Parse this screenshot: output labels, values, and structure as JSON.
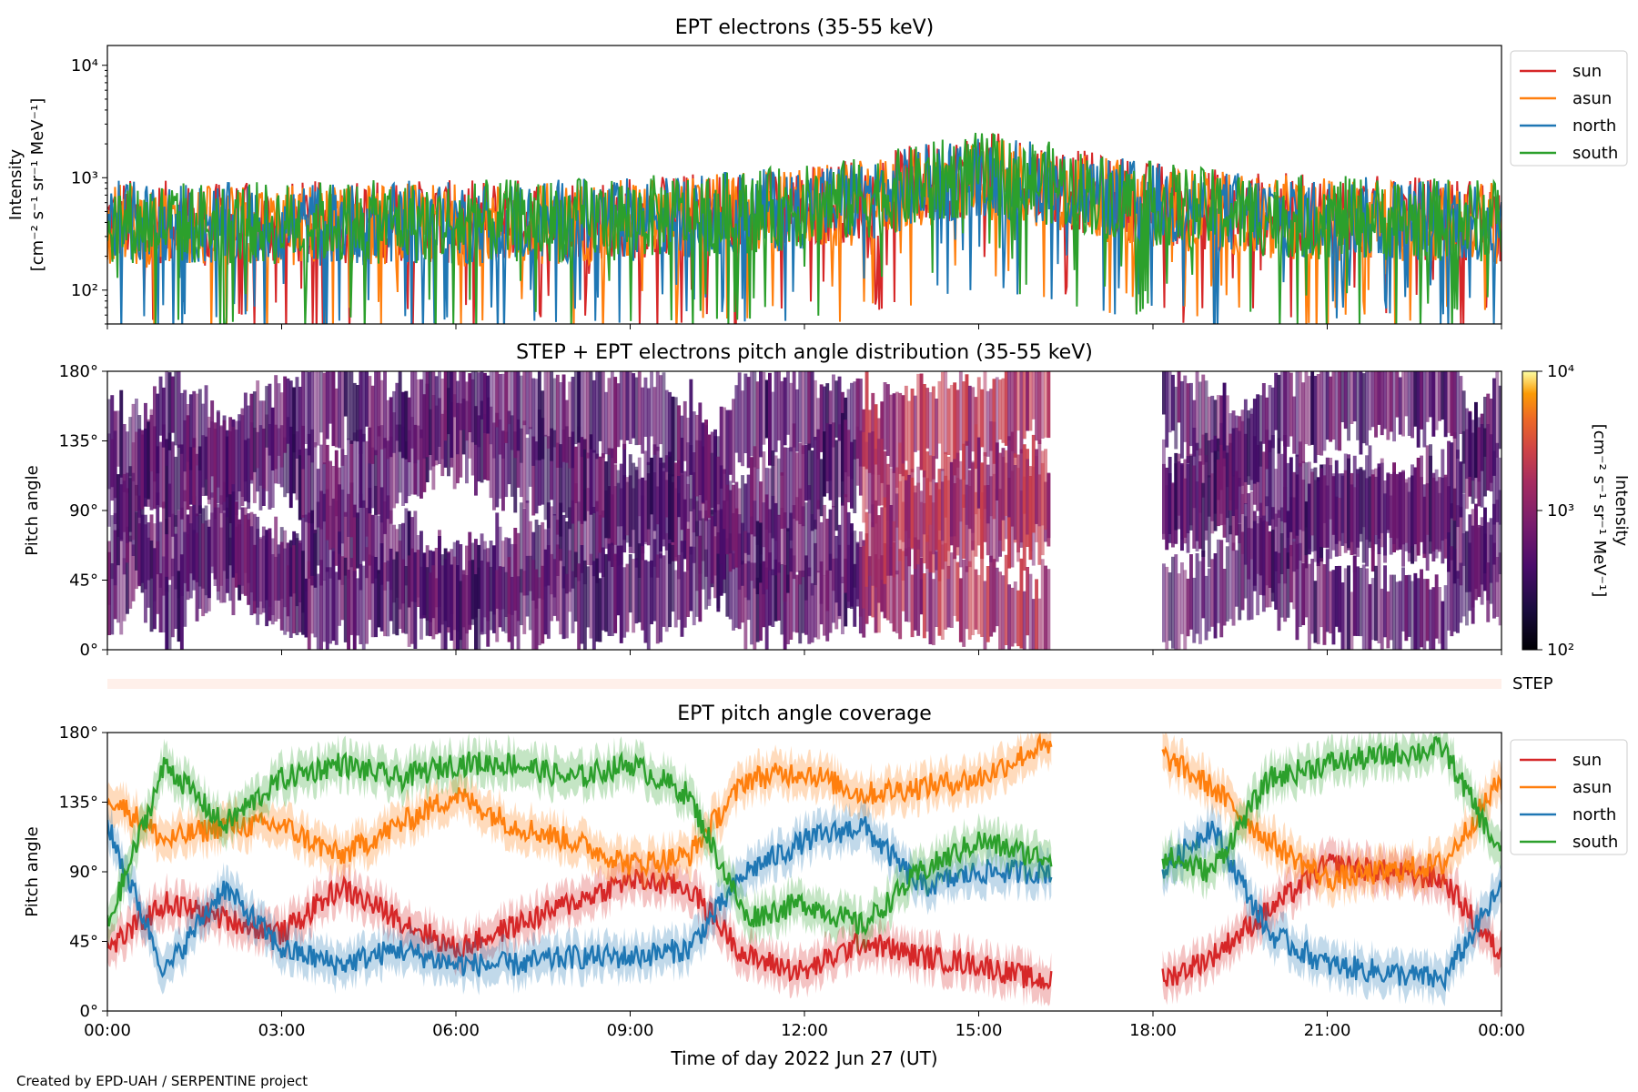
{
  "footer": "Created by EPD-UAH / SERPENTINE project",
  "xlabel": "Time of day 2022 Jun 27 (UT)",
  "x_ticks": [
    "00:00",
    "03:00",
    "06:00",
    "09:00",
    "12:00",
    "15:00",
    "18:00",
    "21:00",
    "00:00"
  ],
  "colors": {
    "sun": "#d62728",
    "asun": "#ff7f0e",
    "north": "#1f77b4",
    "south": "#2ca02c",
    "step_bar": "#fff0ea"
  },
  "step_label": "STEP",
  "chart_data": [
    {
      "type": "line",
      "title": "EPT electrons (35-55 keV)",
      "ylabel_1": "Intensity",
      "ylabel_2": "[cm⁻² s⁻¹ sr⁻¹ MeV⁻¹]",
      "yscale": "log",
      "ylim": [
        50,
        15000
      ],
      "yticks": [
        {
          "value": 100,
          "label": "10²"
        },
        {
          "value": 1000,
          "label": "10³"
        },
        {
          "value": 10000,
          "label": "10⁴"
        }
      ],
      "xlim": [
        "00:00",
        "24:00"
      ],
      "legend": "outside-right",
      "series": [
        {
          "name": "sun",
          "color": "#d62728",
          "x": [
            "00:00",
            "01:00",
            "02:00",
            "03:00",
            "04:00",
            "05:00",
            "06:00",
            "07:00",
            "08:00",
            "09:00",
            "10:00",
            "11:00",
            "12:00",
            "13:00",
            "14:00",
            "15:00",
            "16:00",
            "17:00",
            "18:00",
            "19:00",
            "20:00",
            "21:00",
            "22:00",
            "23:00",
            "24:00"
          ],
          "y": [
            420,
            400,
            380,
            390,
            400,
            410,
            400,
            420,
            430,
            440,
            470,
            500,
            560,
            650,
            850,
            1100,
            950,
            700,
            600,
            520,
            470,
            450,
            440,
            430,
            420
          ]
        },
        {
          "name": "asun",
          "color": "#ff7f0e",
          "x": [
            "00:00",
            "01:00",
            "02:00",
            "03:00",
            "04:00",
            "05:00",
            "06:00",
            "07:00",
            "08:00",
            "09:00",
            "10:00",
            "11:00",
            "12:00",
            "13:00",
            "14:00",
            "15:00",
            "16:00",
            "17:00",
            "18:00",
            "19:00",
            "20:00",
            "21:00",
            "22:00",
            "23:00",
            "24:00"
          ],
          "y": [
            380,
            370,
            360,
            370,
            380,
            380,
            380,
            390,
            400,
            420,
            440,
            470,
            520,
            600,
            780,
            1000,
            880,
            650,
            560,
            490,
            450,
            430,
            420,
            410,
            400
          ]
        },
        {
          "name": "north",
          "color": "#1f77b4",
          "x": [
            "00:00",
            "01:00",
            "02:00",
            "03:00",
            "04:00",
            "05:00",
            "06:00",
            "07:00",
            "08:00",
            "09:00",
            "10:00",
            "11:00",
            "12:00",
            "13:00",
            "14:00",
            "15:00",
            "16:00",
            "17:00",
            "18:00",
            "19:00",
            "20:00",
            "21:00",
            "22:00",
            "23:00",
            "24:00"
          ],
          "y": [
            400,
            390,
            380,
            380,
            390,
            400,
            390,
            410,
            420,
            430,
            460,
            490,
            550,
            640,
            830,
            1080,
            930,
            690,
            590,
            510,
            460,
            440,
            430,
            420,
            410
          ]
        },
        {
          "name": "south",
          "color": "#2ca02c",
          "x": [
            "00:00",
            "01:00",
            "02:00",
            "03:00",
            "04:00",
            "05:00",
            "06:00",
            "07:00",
            "08:00",
            "09:00",
            "10:00",
            "11:00",
            "12:00",
            "13:00",
            "14:00",
            "15:00",
            "16:00",
            "17:00",
            "18:00",
            "19:00",
            "20:00",
            "21:00",
            "22:00",
            "23:00",
            "24:00"
          ],
          "y": [
            410,
            400,
            390,
            390,
            400,
            400,
            400,
            410,
            420,
            440,
            460,
            500,
            550,
            650,
            840,
            1090,
            940,
            700,
            590,
            510,
            460,
            440,
            430,
            420,
            410
          ]
        }
      ]
    },
    {
      "type": "heatmap",
      "title": "STEP + EPT electrons pitch angle distribution (35-55 keV)",
      "ylabel": "Pitch angle",
      "ylim": [
        0,
        180
      ],
      "yticks": [
        "0°",
        "45°",
        "90°",
        "135°",
        "180°"
      ],
      "xlim": [
        "00:00",
        "24:00"
      ],
      "colorbar": {
        "label_1": "Intensity",
        "label_2": "[cm⁻² s⁻¹ sr⁻¹ MeV⁻¹]",
        "scale": "log",
        "range": [
          100,
          10000
        ],
        "ticks": [
          {
            "value": 100,
            "label": "10²"
          },
          {
            "value": 1000,
            "label": "10³"
          },
          {
            "value": 10000,
            "label": "10⁴"
          }
        ],
        "colormap": "inferno"
      },
      "data_gap": [
        "16:15",
        "18:10"
      ],
      "typical_intensity": 450
    },
    {
      "type": "line",
      "title": "EPT pitch angle coverage",
      "ylabel": "Pitch angle",
      "ylim": [
        0,
        180
      ],
      "yticks": [
        "0°",
        "45°",
        "90°",
        "135°",
        "180°"
      ],
      "xlim": [
        "00:00",
        "24:00"
      ],
      "data_gap": [
        "16:15",
        "18:10"
      ],
      "legend": "outside-right",
      "series": [
        {
          "name": "sun",
          "color": "#d62728",
          "x": [
            "00:00",
            "01:00",
            "02:00",
            "03:00",
            "04:00",
            "05:00",
            "06:00",
            "07:00",
            "08:00",
            "09:00",
            "10:00",
            "11:00",
            "12:00",
            "13:00",
            "14:00",
            "15:00",
            "16:00",
            "18:10",
            "19:00",
            "20:00",
            "21:00",
            "22:00",
            "23:00",
            "24:00"
          ],
          "y": [
            40,
            70,
            60,
            50,
            80,
            60,
            40,
            55,
            70,
            85,
            80,
            35,
            25,
            45,
            35,
            30,
            20,
            20,
            35,
            65,
            95,
            90,
            85,
            35
          ]
        },
        {
          "name": "asun",
          "color": "#ff7f0e",
          "x": [
            "00:00",
            "01:00",
            "02:00",
            "03:00",
            "04:00",
            "05:00",
            "06:00",
            "07:00",
            "08:00",
            "09:00",
            "10:00",
            "11:00",
            "12:00",
            "13:00",
            "14:00",
            "15:00",
            "16:00",
            "18:10",
            "19:00",
            "20:00",
            "21:00",
            "22:00",
            "23:00",
            "24:00"
          ],
          "y": [
            140,
            110,
            120,
            120,
            100,
            120,
            140,
            120,
            110,
            95,
            100,
            150,
            155,
            140,
            145,
            150,
            170,
            165,
            145,
            110,
            85,
            90,
            95,
            150
          ]
        },
        {
          "name": "north",
          "color": "#1f77b4",
          "x": [
            "00:00",
            "01:00",
            "02:00",
            "03:00",
            "04:00",
            "05:00",
            "06:00",
            "07:00",
            "08:00",
            "09:00",
            "10:00",
            "11:00",
            "12:00",
            "13:00",
            "14:00",
            "15:00",
            "16:00",
            "18:10",
            "19:00",
            "20:00",
            "21:00",
            "22:00",
            "23:00",
            "24:00"
          ],
          "y": [
            120,
            25,
            80,
            40,
            30,
            40,
            30,
            30,
            35,
            35,
            40,
            90,
            110,
            120,
            80,
            90,
            90,
            90,
            120,
            50,
            30,
            25,
            20,
            80
          ]
        },
        {
          "name": "south",
          "color": "#2ca02c",
          "x": [
            "00:00",
            "01:00",
            "02:00",
            "03:00",
            "04:00",
            "05:00",
            "06:00",
            "07:00",
            "08:00",
            "09:00",
            "10:00",
            "11:00",
            "12:00",
            "13:00",
            "14:00",
            "15:00",
            "16:00",
            "18:10",
            "19:00",
            "20:00",
            "21:00",
            "22:00",
            "23:00",
            "24:00"
          ],
          "y": [
            55,
            160,
            120,
            150,
            160,
            150,
            160,
            160,
            150,
            160,
            140,
            60,
            70,
            55,
            90,
            110,
            100,
            100,
            90,
            150,
            160,
            165,
            170,
            100
          ]
        }
      ]
    }
  ]
}
